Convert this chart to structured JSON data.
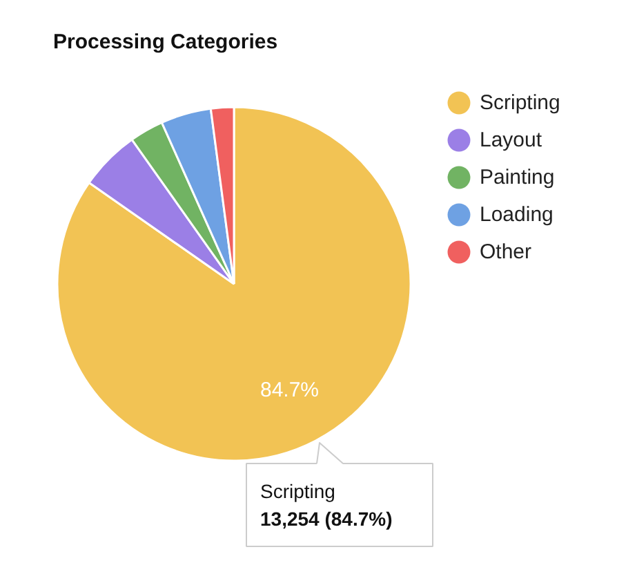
{
  "chart_data": {
    "type": "pie",
    "title": "Processing Categories",
    "categories": [
      "Scripting",
      "Layout",
      "Painting",
      "Loading",
      "Other"
    ],
    "values": [
      84.7,
      5.5,
      3.1,
      4.6,
      2.1
    ],
    "colors": [
      "#f2c354",
      "#9b7fe6",
      "#71b363",
      "#6ea1e3",
      "#f0605f"
    ],
    "value_labels": [
      "84.7%",
      null,
      null,
      null,
      null
    ],
    "legend": "top right",
    "annotations": [
      "Scripting",
      "13,254 (84.7%)"
    ]
  }
}
